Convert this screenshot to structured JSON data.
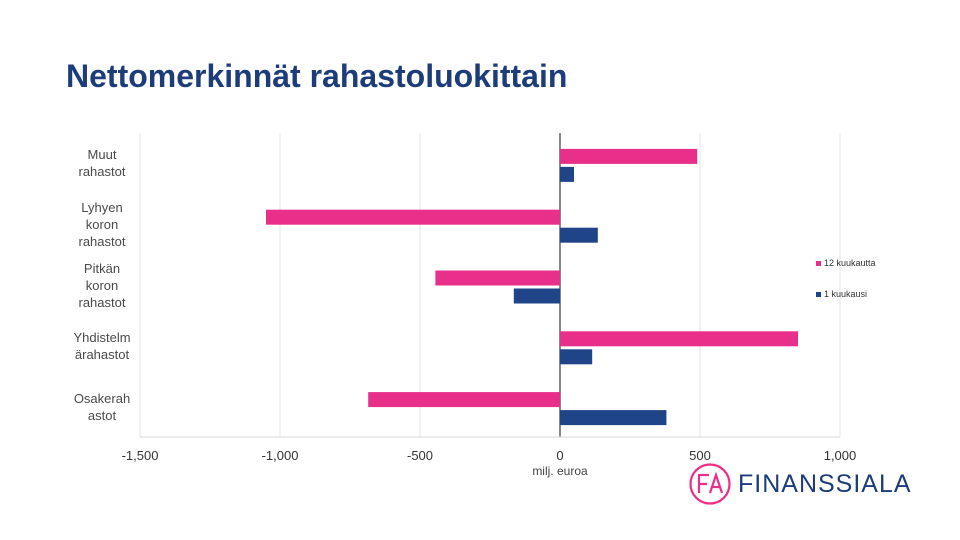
{
  "title": "Nettomerkinnät rahastoluokittain",
  "chart_data": {
    "type": "bar",
    "orientation": "horizontal",
    "categories": [
      "Muut rahastot",
      "Lyhyen koron rahastot",
      "Pitkän koron rahastot",
      "Yhdistelmärahastot",
      "Osakerahastot"
    ],
    "category_label_lines": [
      [
        "Muut",
        "rahastot"
      ],
      [
        "Lyhyen",
        "koron",
        "rahastot"
      ],
      [
        "Pitkän",
        "koron",
        "rahastot"
      ],
      [
        "Yhdistelm",
        "ärahastot"
      ],
      [
        "Osakerah",
        "astot"
      ]
    ],
    "series": [
      {
        "name": "12 kuukautta",
        "color": "#e8308a",
        "values": [
          490,
          -1050,
          -445,
          850,
          -685
        ]
      },
      {
        "name": "1 kuukausi",
        "color": "#1f4488",
        "values": [
          50,
          135,
          -165,
          115,
          380
        ]
      }
    ],
    "xlim": [
      -1500,
      1000
    ],
    "ticks": [
      -1500,
      -1000,
      -500,
      0,
      500,
      1000
    ],
    "tick_labels": [
      "-1,500",
      "-1,000",
      "-500",
      "0",
      "500",
      "1,000"
    ],
    "xlabel": "milj. euroa",
    "grid": true,
    "legend_position": "right"
  },
  "logo": {
    "text": "FINANSSIALA",
    "mark": "FA",
    "color": "#e8308a"
  }
}
